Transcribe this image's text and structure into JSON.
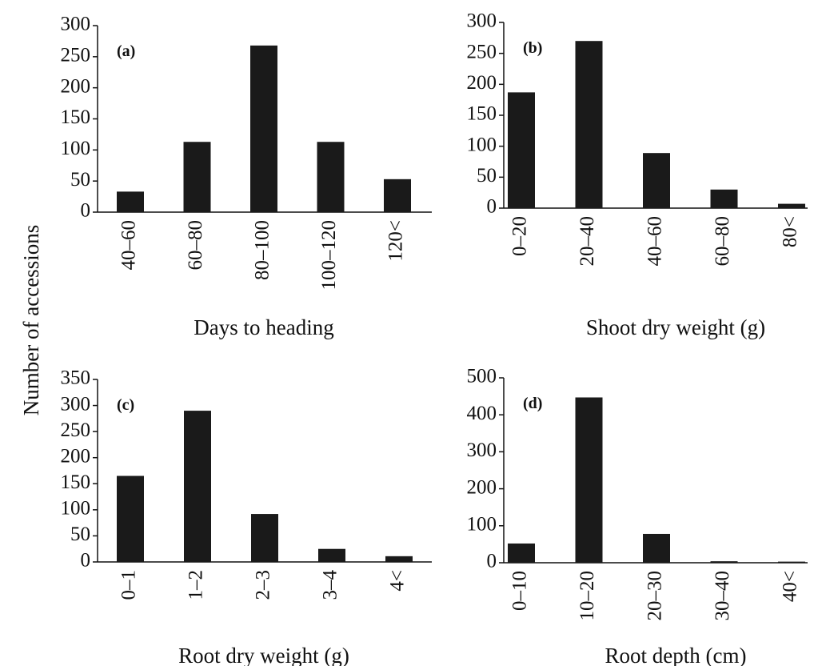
{
  "ylabel": "Number of accessions",
  "chart_data": [
    {
      "type": "bar",
      "label": "(a)",
      "xlabel": "Days to heading",
      "categories": [
        "40–60",
        "60–80",
        "80–100",
        "100–120",
        "120<"
      ],
      "values": [
        33,
        113,
        268,
        113,
        53
      ],
      "color": "#1a1a1a",
      "ylim": [
        0,
        300
      ],
      "yticks": [
        0,
        50,
        100,
        150,
        200,
        250,
        300
      ]
    },
    {
      "type": "bar",
      "label": "(b)",
      "xlabel": "Shoot dry weight (g)",
      "categories": [
        "0–20",
        "20–40",
        "40–60",
        "60–80",
        "80<"
      ],
      "values": [
        187,
        270,
        89,
        30,
        7
      ],
      "color": "#1a1a1a",
      "ylim": [
        0,
        300
      ],
      "yticks": [
        0,
        50,
        100,
        150,
        200,
        250,
        300
      ]
    },
    {
      "type": "bar",
      "label": "(c)",
      "xlabel": "Root dry weight (g)",
      "categories": [
        "0–1",
        "1–2",
        "2–3",
        "3–4",
        "4<"
      ],
      "values": [
        165,
        290,
        92,
        25,
        11
      ],
      "color": "#1a1a1a",
      "ylim": [
        0,
        350
      ],
      "yticks": [
        0,
        50,
        100,
        150,
        200,
        250,
        300,
        350
      ]
    },
    {
      "type": "bar",
      "label": "(d)",
      "xlabel": "Root depth (cm)",
      "categories": [
        "0–10",
        "10–20",
        "20–30",
        "30–40",
        "40<"
      ],
      "values": [
        52,
        447,
        78,
        4,
        3
      ],
      "color": "#1a1a1a",
      "ylim": [
        0,
        500
      ],
      "yticks": [
        0,
        100,
        200,
        300,
        400,
        500
      ]
    }
  ]
}
